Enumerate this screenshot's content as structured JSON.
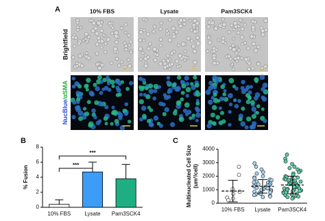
{
  "panels": {
    "a": {
      "label": "A",
      "columns": [
        "10% FBS",
        "Lysate",
        "Pam3SCK4"
      ],
      "rows": [
        {
          "label": "Brightfield"
        },
        {
          "label_parts": [
            "NucBlue",
            "/αSMA"
          ]
        }
      ]
    },
    "b": {
      "label": "B"
    },
    "c": {
      "label": "C"
    }
  },
  "chart_data": [
    {
      "type": "bar",
      "ylabel": "% Fusion",
      "categories": [
        "10% FBS",
        "Lysate",
        "Pam3SCK4"
      ],
      "values": [
        0.4,
        4.7,
        3.8
      ],
      "errors": [
        0.6,
        1.3,
        1.9
      ],
      "colors": [
        "#ffffff",
        "#3d9cf5",
        "#1fae82"
      ],
      "ylim": [
        0,
        8
      ],
      "yticks": [
        0,
        2,
        4,
        6,
        8
      ],
      "annotations": [
        "***",
        "***"
      ]
    },
    {
      "type": "scatter",
      "ylabel": [
        "Multinucleated Cell Size",
        "(um²/cell)"
      ],
      "categories": [
        "10% FBS",
        "Lysate",
        "Pam3SCK4"
      ],
      "colors": [
        "#ffffff",
        "#a8d4f2",
        "#5cc9a7"
      ],
      "values": [
        [
          2700,
          2100,
          1050,
          850,
          700,
          420,
          350,
          220
        ],
        [
          2950,
          2700,
          2500,
          2300,
          2200,
          2000,
          1900,
          1850,
          1750,
          1700,
          1600,
          1550,
          1500,
          1450,
          1400,
          1350,
          1300,
          1250,
          1200,
          1150,
          1100,
          1050,
          1000,
          950,
          900,
          850,
          800,
          750,
          700,
          650,
          600,
          550,
          500,
          450,
          1250,
          1100
        ],
        [
          3600,
          3300,
          3100,
          2900,
          2700,
          2600,
          2500,
          2400,
          2300,
          2200,
          2100,
          2000,
          1950,
          1900,
          1850,
          1800,
          1750,
          1700,
          1650,
          1600,
          1550,
          1500,
          1450,
          1400,
          1350,
          1300,
          1250,
          1200,
          1150,
          1100,
          1050,
          1000,
          950,
          900,
          850,
          800,
          750,
          700,
          650,
          600,
          550,
          500,
          450,
          400,
          350,
          1300,
          1200,
          1100,
          1000,
          1400,
          1500,
          900,
          800,
          1600,
          1700
        ]
      ],
      "means": [
        900,
        1250,
        1350
      ],
      "errors": [
        800,
        500,
        650
      ],
      "ylim": [
        0,
        4000
      ],
      "yticks": [
        0,
        1000,
        2000,
        3000,
        4000
      ]
    }
  ]
}
